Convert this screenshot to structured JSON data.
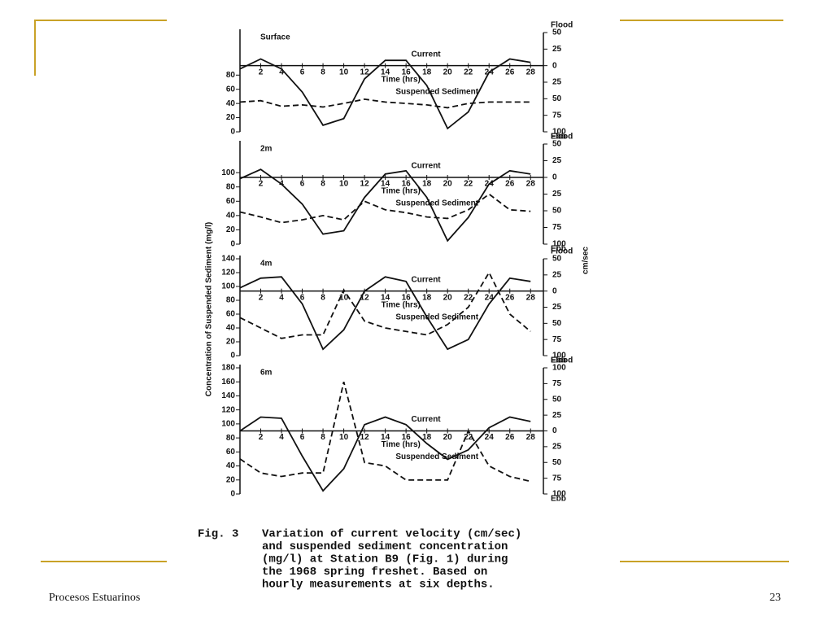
{
  "slide": {
    "footer_left": "Procesos Estuarinos",
    "page_number": "23"
  },
  "figure": {
    "ylabel": "Concentration of Suspended Sediment (mg/l)",
    "y2label": "cm/sec",
    "caption": {
      "label": "Fig. 3",
      "lines": [
        "Variation of current velocity (cm/sec)",
        "and suspended sediment concentration",
        "(mg/l) at Station B9 (Fig. 1) during",
        "the 1968 spring freshet.  Based on",
        "hourly measurements at six depths."
      ]
    }
  },
  "chart_data": [
    {
      "type": "line",
      "title": "Surface",
      "xlabel": "Time (hrs)",
      "flood_label": "Flood",
      "ebb_label": "Ebb",
      "x": [
        0,
        2,
        4,
        6,
        8,
        10,
        12,
        14,
        16,
        18,
        20,
        22,
        24,
        26,
        28
      ],
      "xlim": [
        0,
        29
      ],
      "xticks": [
        2,
        4,
        6,
        8,
        10,
        12,
        14,
        16,
        18,
        20,
        22,
        24,
        26,
        28
      ],
      "ylim": [
        0,
        140
      ],
      "yticks": [
        0,
        20,
        40,
        60,
        80
      ],
      "y2lim": [
        -100,
        50
      ],
      "y2ticks": [
        {
          "value": -100,
          "label": "100"
        },
        {
          "value": -75,
          "label": "75"
        },
        {
          "value": -50,
          "label": "50"
        },
        {
          "value": -25,
          "label": "25"
        },
        0,
        25,
        50
      ],
      "series": [
        {
          "name": "Current",
          "color": "#111111",
          "axis": "y2",
          "values": [
            -5,
            10,
            -5,
            -40,
            -90,
            -80,
            -20,
            8,
            8,
            -30,
            -95,
            -70,
            -10,
            10,
            5
          ]
        },
        {
          "name": "Suspended Sediment",
          "color": "#111111",
          "values": [
            42,
            44,
            36,
            38,
            35,
            40,
            46,
            42,
            40,
            38,
            34,
            40,
            42,
            42,
            42
          ]
        }
      ]
    },
    {
      "type": "line",
      "title": "2m",
      "xlabel": "Time (hrs)",
      "flood_label": "Flood",
      "ebb_label": "Ebb",
      "x": [
        0,
        2,
        4,
        6,
        8,
        10,
        12,
        14,
        16,
        18,
        20,
        22,
        24,
        26,
        28
      ],
      "xlim": [
        0,
        29
      ],
      "xticks": [
        2,
        4,
        6,
        8,
        10,
        12,
        14,
        16,
        18,
        20,
        22,
        24,
        26,
        28
      ],
      "ylim": [
        0,
        140
      ],
      "yticks": [
        0,
        20,
        40,
        60,
        80,
        100
      ],
      "y2lim": [
        -100,
        50
      ],
      "y2ticks": [
        {
          "value": -100,
          "label": "100"
        },
        {
          "value": -75,
          "label": "75"
        },
        {
          "value": -50,
          "label": "50"
        },
        {
          "value": -25,
          "label": "25"
        },
        0,
        25,
        50
      ],
      "series": [
        {
          "name": "Current",
          "color": "#111111",
          "axis": "y2",
          "values": [
            -2,
            12,
            -10,
            -40,
            -85,
            -80,
            -30,
            5,
            10,
            -30,
            -95,
            -60,
            -10,
            10,
            5
          ]
        },
        {
          "name": "Suspended Sediment",
          "color": "#111111",
          "values": [
            45,
            38,
            30,
            34,
            40,
            34,
            60,
            48,
            44,
            38,
            36,
            48,
            70,
            48,
            46
          ]
        }
      ]
    },
    {
      "type": "line",
      "title": "4m",
      "xlabel": "Time (hrs)",
      "flood_label": "Flood",
      "ebb_label": "Ebb",
      "x": [
        0,
        2,
        4,
        6,
        8,
        10,
        12,
        14,
        16,
        18,
        20,
        22,
        24,
        26,
        28
      ],
      "xlim": [
        0,
        29
      ],
      "xticks": [
        2,
        4,
        6,
        8,
        10,
        12,
        14,
        16,
        18,
        20,
        22,
        24,
        26,
        28
      ],
      "ylim": [
        0,
        140
      ],
      "yticks": [
        0,
        20,
        40,
        60,
        80,
        100,
        120,
        140
      ],
      "y2lim": [
        -100,
        50
      ],
      "y2ticks": [
        {
          "value": -100,
          "label": "100"
        },
        {
          "value": -75,
          "label": "75"
        },
        {
          "value": -50,
          "label": "50"
        },
        {
          "value": -25,
          "label": "25"
        },
        0,
        25,
        50
      ],
      "series": [
        {
          "name": "Current",
          "color": "#111111",
          "axis": "y2",
          "values": [
            5,
            20,
            22,
            -20,
            -90,
            -60,
            0,
            22,
            15,
            -40,
            -90,
            -75,
            -20,
            20,
            15
          ]
        },
        {
          "name": "Suspended Sediment",
          "color": "#111111",
          "values": [
            55,
            40,
            25,
            30,
            30,
            95,
            50,
            40,
            35,
            30,
            45,
            70,
            120,
            60,
            35
          ]
        }
      ]
    },
    {
      "type": "line",
      "title": "6m",
      "xlabel": "Time (hrs)",
      "flood_label": "Flood",
      "ebb_label": "Ebb",
      "x": [
        0,
        2,
        4,
        6,
        8,
        10,
        12,
        14,
        16,
        18,
        20,
        22,
        24,
        26,
        28
      ],
      "xlim": [
        0,
        29
      ],
      "xticks": [
        2,
        4,
        6,
        8,
        10,
        12,
        14,
        16,
        18,
        20,
        22,
        24,
        26,
        28
      ],
      "ylim": [
        0,
        180
      ],
      "yticks": [
        0,
        20,
        40,
        60,
        80,
        100,
        120,
        140,
        160,
        180
      ],
      "y2lim": [
        -100,
        100
      ],
      "y2ticks": [
        {
          "value": -100,
          "label": "100"
        },
        {
          "value": -75,
          "label": "75"
        },
        {
          "value": -50,
          "label": "50"
        },
        {
          "value": -25,
          "label": "25"
        },
        0,
        25,
        50,
        75,
        100
      ],
      "series": [
        {
          "name": "Current",
          "color": "#111111",
          "axis": "y2",
          "values": [
            0,
            22,
            20,
            -40,
            -95,
            -60,
            10,
            22,
            10,
            -20,
            -45,
            -30,
            5,
            22,
            15
          ]
        },
        {
          "name": "Suspended Sediment",
          "color": "#111111",
          "values": [
            50,
            30,
            25,
            30,
            30,
            160,
            45,
            40,
            20,
            20,
            20,
            90,
            40,
            25,
            18
          ]
        }
      ]
    }
  ]
}
